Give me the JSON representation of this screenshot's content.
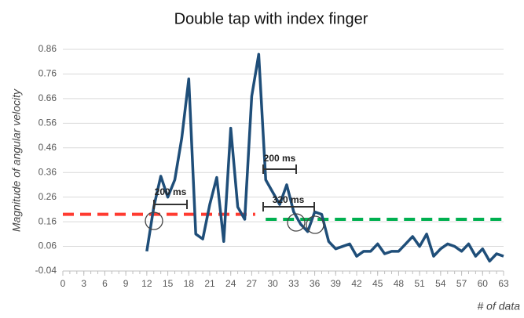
{
  "chart_data": {
    "type": "line",
    "title": "Double tap with index finger",
    "ylabel": "Magnitude of angular velocity",
    "xlabel": "# of data",
    "x": [
      12,
      13,
      14,
      15,
      16,
      17,
      18,
      19,
      20,
      21,
      22,
      23,
      24,
      25,
      26,
      27,
      28,
      29,
      30,
      31,
      32,
      33,
      34,
      35,
      36,
      37,
      38,
      39,
      40,
      41,
      42,
      43,
      44,
      45,
      46,
      47,
      48,
      49,
      50,
      51,
      52,
      53,
      54,
      55,
      56,
      57,
      58,
      59,
      60,
      61,
      62,
      63
    ],
    "series": [
      {
        "color": "#1f4e79",
        "values": [
          0.04,
          0.22,
          0.345,
          0.26,
          0.33,
          0.5,
          0.74,
          0.11,
          0.09,
          0.23,
          0.34,
          0.08,
          0.54,
          0.22,
          0.17,
          0.67,
          0.84,
          0.33,
          0.28,
          0.23,
          0.31,
          0.2,
          0.15,
          0.12,
          0.2,
          0.19,
          0.08,
          0.05,
          0.06,
          0.07,
          0.02,
          0.04,
          0.04,
          0.07,
          0.03,
          0.04,
          0.04,
          0.07,
          0.1,
          0.06,
          0.11,
          0.02,
          0.05,
          0.07,
          0.06,
          0.04,
          0.07,
          0.02,
          0.05,
          0.0,
          0.03,
          0.02
        ]
      }
    ],
    "reference_lines": [
      {
        "value": 0.19,
        "color": "#ff3b30",
        "x": [
          0,
          27.5
        ]
      },
      {
        "value": 0.17,
        "color": "#00b050",
        "x": [
          29,
          63
        ]
      }
    ],
    "annotations": [
      "200 ms",
      "200 ms",
      "320 ms"
    ],
    "xlim": [
      0,
      63
    ],
    "xticks": [
      0,
      3,
      6,
      9,
      12,
      15,
      18,
      21,
      24,
      27,
      30,
      33,
      36,
      39,
      42,
      45,
      48,
      51,
      54,
      57,
      60,
      63
    ],
    "ylim": [
      -0.04,
      0.86
    ],
    "yticks": [
      -0.04,
      0.06,
      0.16,
      0.26,
      0.36,
      0.46,
      0.56,
      0.66,
      0.76,
      0.86
    ],
    "grid": true
  }
}
